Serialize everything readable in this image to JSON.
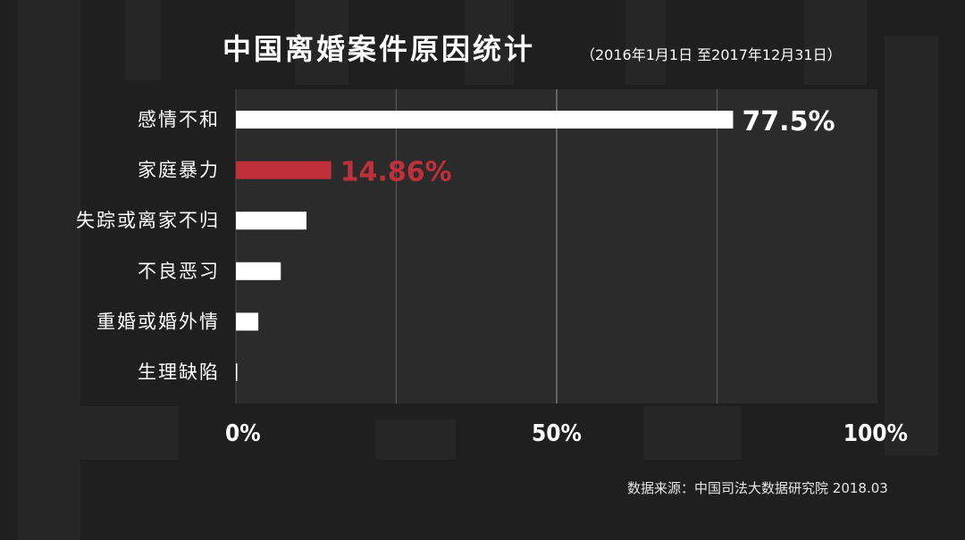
{
  "title": "中国离婚案件原因统计",
  "subtitle": "（2016年1月1日 至2017年12月31日）",
  "source": "数据来源：中国司法大数据研究院 2018.03",
  "colors": {
    "background": "#1f1f1f",
    "plot_background": "#2b2b2b",
    "bar_default": "#ffffff",
    "bar_highlight": "#c0303a",
    "gridline": "#6a6a6a"
  },
  "chart_data": {
    "type": "bar",
    "orientation": "horizontal",
    "categories": [
      "感情不和",
      "家庭暴力",
      "失踪或离家不归",
      "不良恶习",
      "重婚或婚外情",
      "生理缺陷"
    ],
    "values": [
      77.5,
      14.86,
      11,
      7,
      3.5,
      0.2
    ],
    "data_labels": [
      "77.5%",
      "14.86%",
      "",
      "",
      "",
      ""
    ],
    "highlight_index": 1,
    "xlim": [
      0,
      100
    ],
    "xticks": [
      "0%",
      "50%",
      "100%"
    ],
    "xtick_values": [
      0,
      50,
      100
    ],
    "gridlines_at": [
      25,
      50,
      75
    ],
    "grid": true,
    "xlabel": "",
    "ylabel": ""
  }
}
